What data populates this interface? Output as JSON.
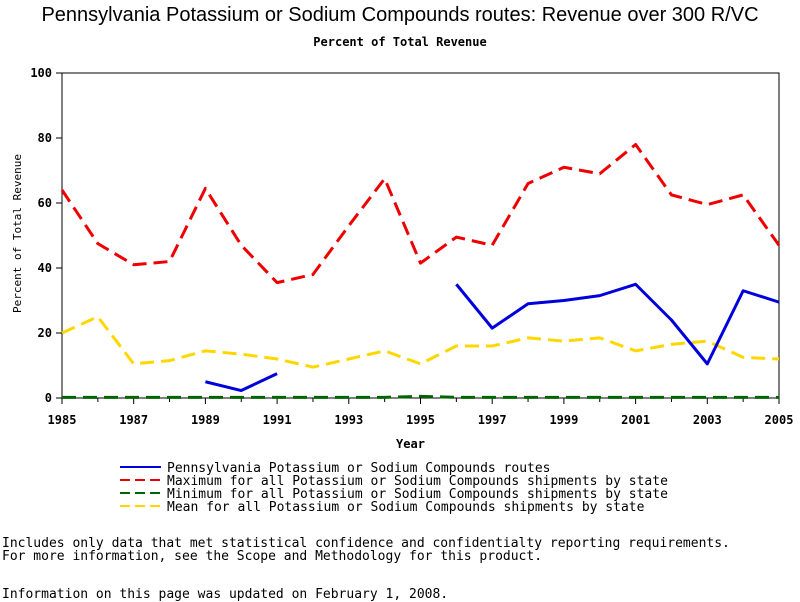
{
  "chart_data": {
    "type": "line",
    "title": "Pennsylvania Potassium or Sodium Compounds routes: Revenue over 300 R/VC",
    "subtitle": "Percent of Total Revenue",
    "xlabel": "Year",
    "ylabel": "Percent of Total Revenue",
    "ylim": [
      0,
      100
    ],
    "xlim": [
      1985,
      2005
    ],
    "x_ticks": [
      "1985",
      "1987",
      "1989",
      "1991",
      "1993",
      "1995",
      "1997",
      "1999",
      "2001",
      "2003",
      "2005"
    ],
    "y_ticks": [
      "0",
      "20",
      "40",
      "60",
      "80",
      "100"
    ],
    "grid": false,
    "legend_position": "bottom",
    "series": [
      {
        "name": "Pennsylvania Potassium or Sodium Compounds routes",
        "color": "#0000dd",
        "style": "solid",
        "points": [
          [
            1989,
            5
          ],
          [
            1990,
            2.3
          ],
          [
            1991,
            7.5
          ],
          [
            1996,
            35
          ],
          [
            1997,
            21.5
          ],
          [
            1998,
            29
          ],
          [
            1999,
            30
          ],
          [
            2000,
            31.5
          ],
          [
            2001,
            35
          ],
          [
            2002,
            24
          ],
          [
            2003,
            10.5
          ],
          [
            2004,
            33
          ],
          [
            2005,
            29.5
          ]
        ],
        "segments": [
          [
            1989,
            1991
          ],
          [
            1996,
            2005
          ]
        ]
      },
      {
        "name": "Maximum for all Potassium or Sodium Compounds shipments by state",
        "color": "#ee0000",
        "style": "dashed",
        "points": [
          [
            1985,
            64
          ],
          [
            1986,
            47.5
          ],
          [
            1987,
            41
          ],
          [
            1988,
            42
          ],
          [
            1989,
            64.5
          ],
          [
            1990,
            47
          ],
          [
            1991,
            35.5
          ],
          [
            1992,
            38
          ],
          [
            1993,
            53
          ],
          [
            1994,
            67.5
          ],
          [
            1995,
            41.5
          ],
          [
            1996,
            49.5
          ],
          [
            1997,
            47
          ],
          [
            1998,
            66
          ],
          [
            1999,
            71
          ],
          [
            2000,
            69
          ],
          [
            2001,
            78
          ],
          [
            2002,
            62.5
          ],
          [
            2003,
            59.5
          ],
          [
            2004,
            62.5
          ],
          [
            2005,
            47
          ]
        ]
      },
      {
        "name": "Minimum for all Potassium or Sodium Compounds shipments by state",
        "color": "#006400",
        "style": "dashed",
        "points": [
          [
            1985,
            0.2
          ],
          [
            1986,
            0.2
          ],
          [
            1987,
            0.2
          ],
          [
            1988,
            0.2
          ],
          [
            1989,
            0.2
          ],
          [
            1990,
            0.2
          ],
          [
            1991,
            0.2
          ],
          [
            1992,
            0.2
          ],
          [
            1993,
            0.2
          ],
          [
            1994,
            0.2
          ],
          [
            1995,
            0.5
          ],
          [
            1996,
            0.2
          ],
          [
            1997,
            0.2
          ],
          [
            1998,
            0.2
          ],
          [
            1999,
            0.2
          ],
          [
            2000,
            0.2
          ],
          [
            2001,
            0.2
          ],
          [
            2002,
            0.2
          ],
          [
            2003,
            0.2
          ],
          [
            2004,
            0.2
          ],
          [
            2005,
            0.2
          ]
        ]
      },
      {
        "name": "Mean for all Potassium or Sodium Compounds shipments by state",
        "color": "#ffd700",
        "style": "dashed",
        "points": [
          [
            1985,
            20
          ],
          [
            1986,
            25
          ],
          [
            1987,
            10.5
          ],
          [
            1988,
            11.5
          ],
          [
            1989,
            14.5
          ],
          [
            1990,
            13.5
          ],
          [
            1991,
            12
          ],
          [
            1992,
            9.5
          ],
          [
            1993,
            12
          ],
          [
            1994,
            14.5
          ],
          [
            1995,
            10.5
          ],
          [
            1996,
            16
          ],
          [
            1997,
            16
          ],
          [
            1998,
            18.5
          ],
          [
            1999,
            17.5
          ],
          [
            2000,
            18.5
          ],
          [
            2001,
            14.5
          ],
          [
            2002,
            16.5
          ],
          [
            2003,
            17.5
          ],
          [
            2004,
            12.5
          ],
          [
            2005,
            12
          ]
        ]
      }
    ]
  },
  "notes": {
    "line1": "Includes only data that met statistical confidence and confidentialty reporting requirements.",
    "line2": "For more information, see the Scope and Methodology for this product.",
    "line3": "Information on this page was updated on February 1, 2008."
  }
}
